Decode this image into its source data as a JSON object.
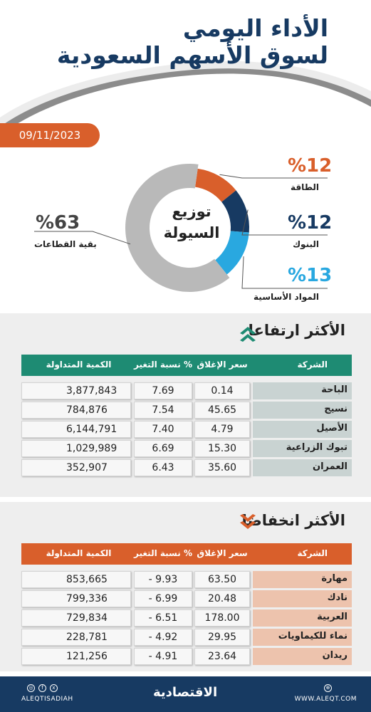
{
  "header": {
    "title_line1": "الأداء اليومي",
    "title_line2": "لسوق الأسهم السعودية",
    "date": "09/11/2023"
  },
  "liquidity": {
    "center_line1": "توزيع",
    "center_line2": "السيولة",
    "slices": [
      {
        "label": "الطاقة",
        "pct_text": "%12",
        "value": 12,
        "color": "#d95f2b"
      },
      {
        "label": "البنوك",
        "pct_text": "%12",
        "value": 12,
        "color": "#173a62"
      },
      {
        "label": "المواد الأساسية",
        "pct_text": "%13",
        "value": 13,
        "color": "#29a8e0"
      },
      {
        "label": "بقية القطاعات",
        "pct_text": "%63",
        "value": 63,
        "color": "#b9b9b9"
      }
    ]
  },
  "gainers": {
    "title": "الأكثر ارتفاعا",
    "header_color": "#1e8b73",
    "columns": {
      "name": "الشركة",
      "close": "سعر الإغلاق",
      "change": "نسبة التغير %",
      "qty": "الكمية المتداولة"
    },
    "rows": [
      {
        "name": "الباحة",
        "close": "0.14",
        "change": "7.69",
        "qty": "3,877,843"
      },
      {
        "name": "نسيج",
        "close": "45.65",
        "change": "7.54",
        "qty": "784,876"
      },
      {
        "name": "الأصيل",
        "close": "4.79",
        "change": "7.40",
        "qty": "6,144,791"
      },
      {
        "name": "تبوك الزراعية",
        "close": "15.30",
        "change": "6.69",
        "qty": "1,029,989"
      },
      {
        "name": "العمران",
        "close": "35.60",
        "change": "6.43",
        "qty": "352,907"
      }
    ]
  },
  "losers": {
    "title": "الأكثر انخفاضا",
    "header_color": "#d95f2b",
    "columns": {
      "name": "الشركة",
      "close": "سعر الإغلاق",
      "change": "نسبة التغير %",
      "qty": "الكمية المتداولة"
    },
    "rows": [
      {
        "name": "مهارة",
        "close": "63.50",
        "change": "- 9.93",
        "qty": "853,665"
      },
      {
        "name": "نادك",
        "close": "20.48",
        "change": "- 6.99",
        "qty": "799,336"
      },
      {
        "name": "العربية",
        "close": "178.00",
        "change": "- 6.51",
        "qty": "729,834"
      },
      {
        "name": "نماء للكيماويات",
        "close": "29.95",
        "change": "- 4.92",
        "qty": "228,781"
      },
      {
        "name": "ريدان",
        "close": "23.64",
        "change": "- 4.91",
        "qty": "121,256"
      }
    ]
  },
  "footer": {
    "brand": "الاقتصادية",
    "handle": "ALEQTISADIAH",
    "site": "WWW.ALEQT.COM",
    "social_icons": [
      "instagram-icon",
      "facebook-icon",
      "x-icon"
    ]
  }
}
